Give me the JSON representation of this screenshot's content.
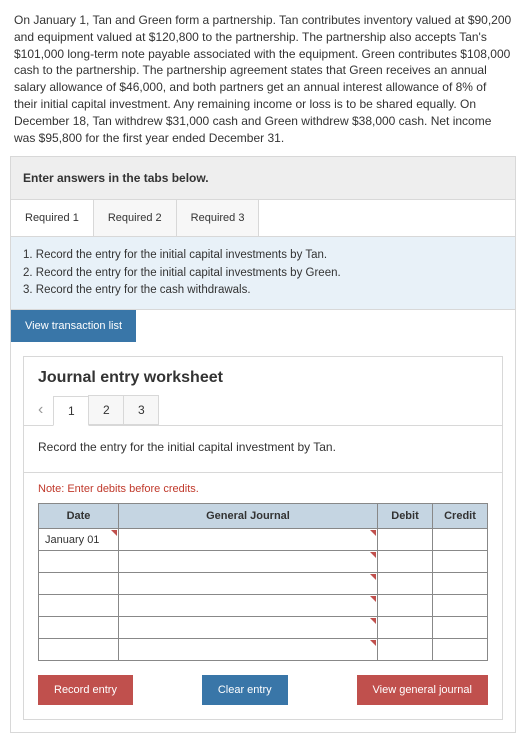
{
  "problem_text": "On January 1, Tan and Green form a partnership. Tan contributes inventory valued at $90,200 and equipment valued at $120,800 to the partnership. The partnership also accepts Tan's $101,000 long-term note payable associated with the equipment. Green contributes $108,000 cash to the partnership. The partnership agreement states that Green receives an annual salary allowance of $46,000, and both partners get an annual interest allowance of 8% of their initial capital investment. Any remaining income or loss is to be shared equally. On December 18, Tan withdrew $31,000 cash and Green withdrew $38,000 cash. Net income was $95,800 for the first year ended December 31.",
  "instruction": "Enter answers in the tabs below.",
  "tabs": {
    "t1": "Required 1",
    "t2": "Required 2",
    "t3": "Required 3"
  },
  "requirements": {
    "r1": "1. Record the entry for the initial capital investments by Tan.",
    "r2": "2. Record the entry for the initial capital investments by Green.",
    "r3": "3. Record the entry for the cash withdrawals."
  },
  "view_txn": "View transaction list",
  "worksheet": {
    "title": "Journal entry worksheet",
    "steps": {
      "s1": "1",
      "s2": "2",
      "s3": "3"
    },
    "entry_desc": "Record the entry for the initial capital investment by Tan.",
    "note": "Note: Enter debits before credits.",
    "headers": {
      "date": "Date",
      "gj": "General Journal",
      "debit": "Debit",
      "credit": "Credit"
    },
    "date_value": "January 01"
  },
  "buttons": {
    "record": "Record entry",
    "clear": "Clear entry",
    "vgj": "View general journal"
  },
  "colors": {
    "header_bg": "#c5d5e2",
    "info_bg": "#e8f1f8",
    "blue_btn": "#3976a8",
    "red_btn": "#c0504d",
    "note_color": "#c0392b"
  }
}
